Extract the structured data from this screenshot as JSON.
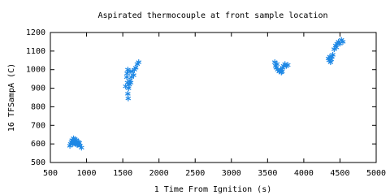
{
  "chart_data": {
    "type": "scatter",
    "title": "Aspirated thermocouple at front sample location",
    "xlabel": "1 Time From Ignition (s)",
    "ylabel": "16 TFSampA (C)",
    "color": "#1e88e5",
    "x": [
      770,
      790,
      800,
      810,
      820,
      830,
      840,
      850,
      860,
      870,
      880,
      890,
      900,
      910,
      930,
      780,
      820,
      860,
      1540,
      1555,
      1560,
      1565,
      1570,
      1575,
      1580,
      1590,
      1600,
      1610,
      1620,
      1630,
      1650,
      1660,
      1680,
      1700,
      1720,
      1600,
      1570,
      3600,
      3610,
      3620,
      3640,
      3660,
      3680,
      3700,
      3710,
      3720,
      3740,
      3760,
      3780,
      3630,
      3690,
      4340,
      4350,
      4360,
      4370,
      4380,
      4390,
      4400,
      4420,
      4440,
      4460,
      4480,
      4500,
      4520,
      4540,
      4450
    ],
    "y": [
      590,
      610,
      620,
      600,
      615,
      605,
      625,
      600,
      610,
      595,
      600,
      610,
      605,
      590,
      580,
      600,
      630,
      620,
      910,
      960,
      980,
      930,
      870,
      845,
      900,
      920,
      940,
      930,
      960,
      990,
      970,
      1000,
      1010,
      1030,
      1040,
      990,
      1000,
      1040,
      1020,
      1010,
      1000,
      990,
      1000,
      990,
      1010,
      1020,
      1030,
      1020,
      1025,
      1030,
      985,
      1060,
      1050,
      1070,
      1040,
      1055,
      1070,
      1080,
      1110,
      1130,
      1140,
      1150,
      1140,
      1160,
      1150,
      1120
    ],
    "xlim": [
      500,
      5000
    ],
    "ylim": [
      500,
      1200
    ],
    "xticks": [
      500,
      1000,
      1500,
      2000,
      2500,
      3000,
      3500,
      4000,
      4500,
      5000
    ],
    "yticks": [
      500,
      600,
      700,
      800,
      900,
      1000,
      1100,
      1200
    ]
  }
}
